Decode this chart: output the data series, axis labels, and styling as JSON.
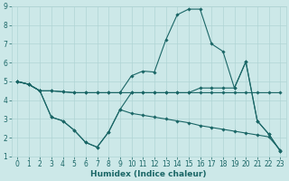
{
  "xlabel": "Humidex (Indice chaleur)",
  "xlim": [
    -0.5,
    23.5
  ],
  "ylim": [
    1,
    9
  ],
  "xticks": [
    0,
    1,
    2,
    3,
    4,
    5,
    6,
    7,
    8,
    9,
    10,
    11,
    12,
    13,
    14,
    15,
    16,
    17,
    18,
    19,
    20,
    21,
    22,
    23
  ],
  "yticks": [
    1,
    2,
    3,
    4,
    5,
    6,
    7,
    8,
    9
  ],
  "background_color": "#cce8e8",
  "grid_color": "#b0d4d4",
  "line_color": "#1a6666",
  "lines": [
    {
      "x": [
        0,
        1,
        2,
        3,
        4,
        5,
        6,
        7,
        8,
        9,
        10,
        11,
        12,
        13,
        14,
        15,
        16,
        17,
        18,
        19,
        20,
        21,
        22,
        23
      ],
      "y": [
        5.0,
        4.85,
        4.5,
        4.5,
        4.45,
        4.4,
        4.4,
        4.4,
        4.4,
        4.4,
        5.3,
        5.55,
        5.5,
        7.2,
        8.55,
        8.85,
        8.85,
        7.0,
        6.6,
        4.65,
        6.05,
        2.9,
        2.2,
        1.3
      ]
    },
    {
      "x": [
        0,
        1,
        2,
        3,
        4,
        5,
        6,
        7,
        8,
        9,
        10,
        11,
        12,
        13,
        14,
        15,
        16,
        17,
        18,
        19,
        20,
        21,
        22,
        23
      ],
      "y": [
        5.0,
        4.85,
        4.5,
        4.5,
        4.45,
        4.4,
        4.4,
        4.4,
        4.4,
        4.4,
        4.4,
        4.4,
        4.4,
        4.4,
        4.4,
        4.4,
        4.65,
        4.65,
        4.65,
        4.65,
        6.05,
        2.9,
        2.2,
        1.3
      ]
    },
    {
      "x": [
        0,
        1,
        2,
        3,
        4,
        5,
        6,
        7,
        8,
        9,
        10,
        11,
        12,
        13,
        14,
        15,
        16,
        17,
        18,
        19,
        20,
        21,
        22,
        23
      ],
      "y": [
        5.0,
        4.85,
        4.5,
        3.1,
        2.9,
        2.4,
        1.75,
        1.5,
        2.3,
        3.5,
        4.4,
        4.4,
        4.4,
        4.4,
        4.4,
        4.4,
        4.4,
        4.4,
        4.4,
        4.4,
        4.4,
        4.4,
        4.4,
        4.4
      ]
    },
    {
      "x": [
        0,
        1,
        2,
        3,
        4,
        5,
        6,
        7,
        8,
        9,
        10,
        11,
        12,
        13,
        14,
        15,
        16,
        17,
        18,
        19,
        20,
        21,
        22,
        23
      ],
      "y": [
        5.0,
        4.85,
        4.5,
        3.1,
        2.9,
        2.4,
        1.75,
        1.5,
        2.3,
        3.5,
        3.3,
        3.2,
        3.1,
        3.0,
        2.9,
        2.8,
        2.65,
        2.55,
        2.45,
        2.35,
        2.25,
        2.15,
        2.05,
        1.35
      ]
    }
  ]
}
